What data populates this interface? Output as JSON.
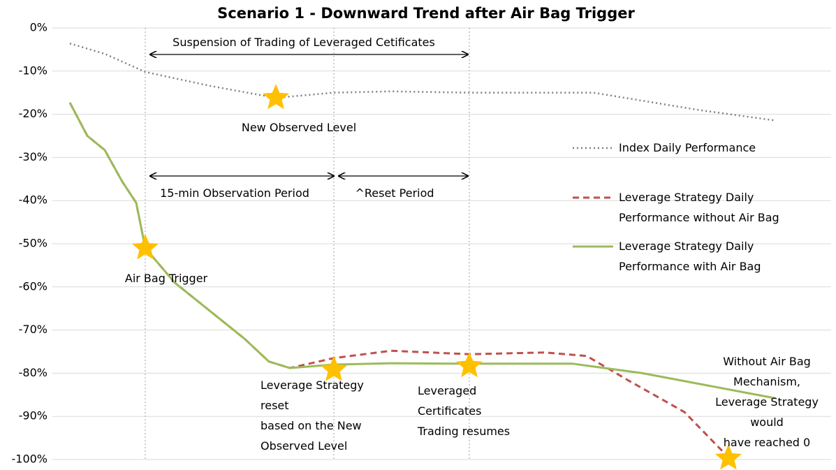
{
  "chart_data": {
    "type": "line",
    "title": "Scenario 1 - Downward Trend after Air Bag Trigger",
    "xlim": [
      75,
      1190
    ],
    "ylim": [
      -100,
      0
    ],
    "yticks": [
      {
        "value": 0,
        "label": "0%"
      },
      {
        "value": -10,
        "label": "-10%"
      },
      {
        "value": -20,
        "label": "-20%"
      },
      {
        "value": -30,
        "label": "-30%"
      },
      {
        "value": -40,
        "label": "-40%"
      },
      {
        "value": -50,
        "label": "-50%"
      },
      {
        "value": -60,
        "label": "-60%"
      },
      {
        "value": -70,
        "label": "-70%"
      },
      {
        "value": -80,
        "label": "-80%"
      },
      {
        "value": -90,
        "label": "-90%"
      },
      {
        "value": -100,
        "label": "-100%"
      }
    ],
    "grid": true,
    "legend": "right",
    "series": [
      {
        "name": "Index Daily Performance",
        "color": "#7f7f7f",
        "style": "dotted",
        "x": [
          100,
          150,
          208,
          300,
          395,
          478,
          560,
          672,
          850,
          1000,
          1108
        ],
        "values": [
          -3.6,
          -6,
          -10.2,
          -13.4,
          -16.2,
          -15,
          -14.7,
          -15,
          -15,
          -19,
          -21.4
        ]
      },
      {
        "name": "Leverage Strategy Daily Performance without Air Bag",
        "color": "#c0504d",
        "style": "dashed",
        "x": [
          100,
          125,
          150,
          175,
          195,
          208,
          250,
          300,
          350,
          385,
          415,
          478,
          560,
          672,
          780,
          840,
          900,
          980,
          1043
        ],
        "values": [
          -17.3,
          -25,
          -28.3,
          -35.6,
          -40.5,
          -51,
          -59,
          -65.5,
          -72,
          -77.3,
          -78.8,
          -76.5,
          -74.8,
          -75.6,
          -75.2,
          -76,
          -81.7,
          -89,
          -99.5
        ]
      },
      {
        "name": "Leverage Strategy Daily Performance with Air Bag",
        "color": "#9bbb59",
        "style": "solid",
        "x": [
          100,
          125,
          150,
          175,
          195,
          208,
          250,
          300,
          350,
          385,
          415,
          478,
          560,
          672,
          820,
          920,
          1110
        ],
        "values": [
          -17.3,
          -25,
          -28.3,
          -35.6,
          -40.5,
          -51,
          -59,
          -65.5,
          -72,
          -77.3,
          -78.8,
          -78,
          -77.7,
          -77.8,
          -77.8,
          -80,
          -85.8
        ]
      }
    ],
    "vlines": [
      208,
      478,
      672
    ],
    "markers": {
      "color": "#ffc000",
      "x": [
        208,
        395,
        478,
        672,
        1043
      ],
      "values": [
        -51,
        -16.2,
        -79.2,
        -78.3,
        -99.7
      ]
    },
    "annotations": [
      "Suspension of Trading of Leveraged Cetificates",
      "New Observed Level",
      "15-min Observation Period",
      "^Reset Period",
      "Air Bag Trigger",
      [
        "Leverage Strategy",
        "reset",
        "based on the New",
        "Observed Level"
      ],
      [
        "Leveraged",
        "Certificates",
        "Trading resumes"
      ],
      [
        "Without Air Bag",
        "Mechanism,",
        "Leverage Strategy",
        "would",
        "have reached 0"
      ]
    ]
  }
}
